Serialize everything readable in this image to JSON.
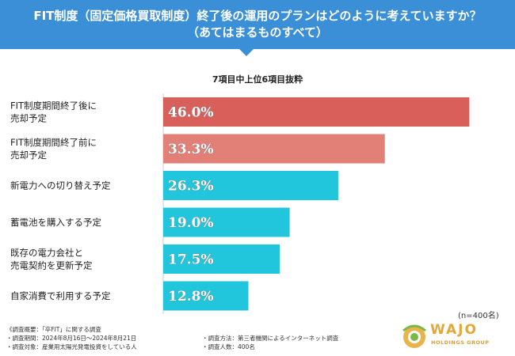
{
  "banner": {
    "title_line1": "FIT制度（固定価格買取制度）終了後の運用のプランはどのように考えていますか？",
    "title_line2": "（あてはまるものすべて）"
  },
  "colors": {
    "banner": "#3a8fd6",
    "top1": "#d9605a",
    "top2": "#e27f77",
    "other": "#22c6dc",
    "axis": "#cccccc"
  },
  "chart_data": {
    "type": "bar",
    "orientation": "horizontal",
    "title": "7項目中上位6項目抜粋",
    "categories": [
      [
        "FIT制度期間終了後に",
        "売却予定"
      ],
      [
        "FIT制度期間終了前に",
        "売却予定"
      ],
      [
        "新電力への切り替え予定"
      ],
      [
        "蓄電池を購入する予定"
      ],
      [
        "既存の電力会社と",
        "売電契約を更新予定"
      ],
      [
        "自家消費で利用する予定"
      ]
    ],
    "values": [
      46.0,
      33.3,
      26.3,
      19.0,
      17.5,
      12.8
    ],
    "value_labels": [
      "46.0%",
      "33.3%",
      "26.3%",
      "19.0%",
      "17.5%",
      "12.8%"
    ],
    "xlim": [
      0,
      50
    ],
    "unit": "%",
    "sample_size": "(n=400名)"
  },
  "notes": {
    "left": [
      "《調査概要：「卒FIT」に関する調査",
      "・調査期間：2024年8月16日～2024年8月21日",
      "・調査対象：産業用太陽光発電投資をしている人"
    ],
    "right": [
      "・調査方法：第三者機関によるインターネット調査",
      "・調査人数：400名"
    ]
  },
  "logo": {
    "name": "WAJO",
    "sub": "HOLDINGS GROUP"
  }
}
